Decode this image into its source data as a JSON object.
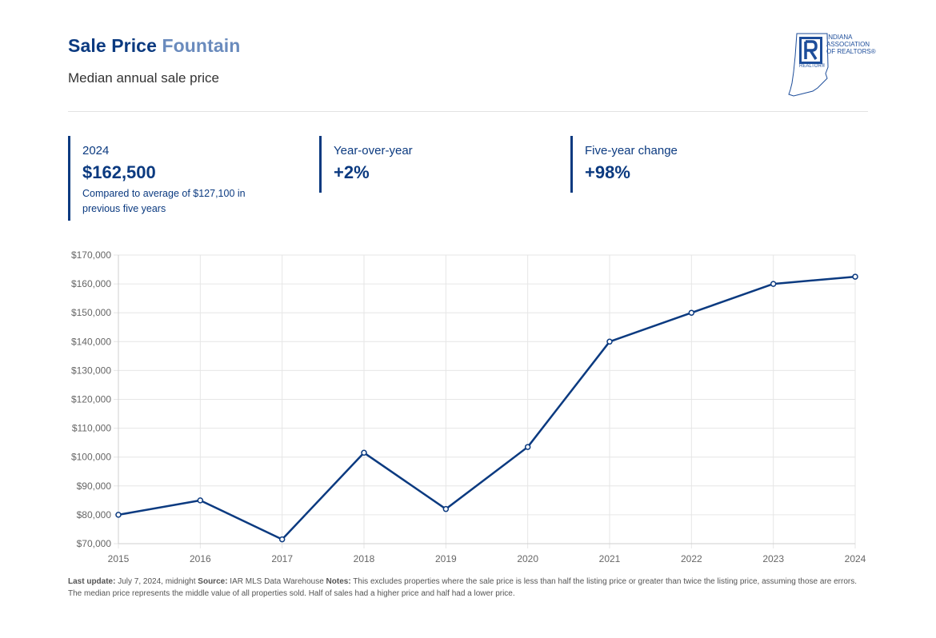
{
  "header": {
    "title_prefix": "Sale Price",
    "title_place": "Fountain",
    "subtitle": "Median annual sale price"
  },
  "logo": {
    "lines": [
      "INDIANA",
      "ASSOCIATION",
      "of REALTORS®"
    ],
    "sub": "REALTOR®",
    "color": "#1d4d9a"
  },
  "stats": [
    {
      "label": "2024",
      "value": "$162,500",
      "note": "Compared to average of $127,100 in previous five years"
    },
    {
      "label": "Year-over-year",
      "value": "+2%"
    },
    {
      "label": "Five-year change",
      "value": "+98%"
    }
  ],
  "chart_data": {
    "type": "line",
    "x": [
      "2015",
      "2016",
      "2017",
      "2018",
      "2019",
      "2020",
      "2021",
      "2022",
      "2023",
      "2024"
    ],
    "series": [
      {
        "values": [
          80000,
          85000,
          71500,
          101500,
          82000,
          103500,
          140000,
          150000,
          160000,
          162500
        ],
        "color": "#0b3a80"
      }
    ],
    "ylim": [
      70000,
      170000
    ],
    "yticks": [
      70000,
      80000,
      90000,
      100000,
      110000,
      120000,
      130000,
      140000,
      150000,
      160000,
      170000
    ],
    "ytick_labels": [
      "$70,000",
      "$80,000",
      "$90,000",
      "$100,000",
      "$110,000",
      "$120,000",
      "$130,000",
      "$140,000",
      "$150,000",
      "$160,000",
      "$170,000"
    ],
    "grid": true
  },
  "footer": {
    "update_label": "Last update:",
    "update_value": " July 7, 2024, midnight ",
    "source_label": "Source:",
    "source_value": " IAR MLS Data Warehouse ",
    "notes_label": "Notes:",
    "notes_value": " This excludes properties where the sale price is less than half the listing price or greater than twice the listing price, assuming those are errors. The median price represents the middle value of all properties sold. Half of sales had a higher price and half had a lower price."
  }
}
